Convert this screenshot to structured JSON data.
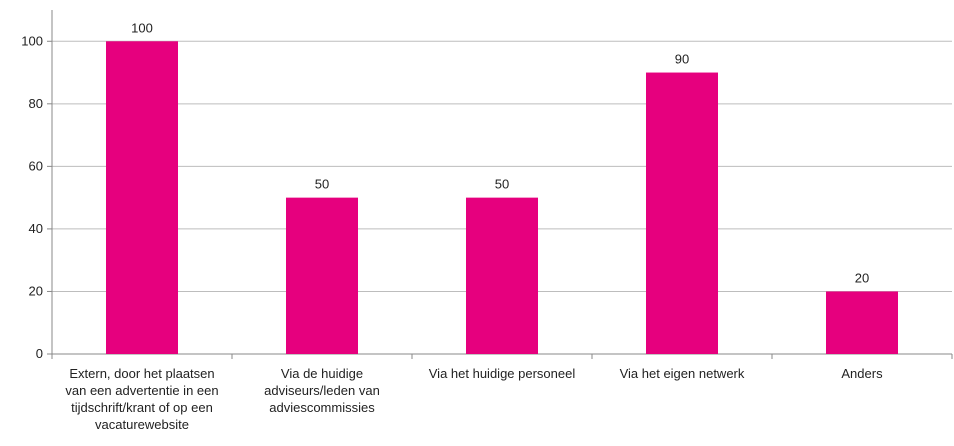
{
  "chart_data": {
    "type": "bar",
    "categories": [
      "Extern, door het plaatsen van een advertentie in een tijdschrift/krant of op een vacaturewebsite",
      "Via de huidige adviseurs/leden van adviescommissies",
      "Via het huidige personeel",
      "Via het eigen netwerk",
      "Anders"
    ],
    "values": [
      100,
      50,
      50,
      90,
      20
    ],
    "color": "#e6007e",
    "ylim": [
      0,
      110
    ],
    "yticks": [
      0,
      20,
      40,
      60,
      80,
      100
    ],
    "grid": true
  }
}
